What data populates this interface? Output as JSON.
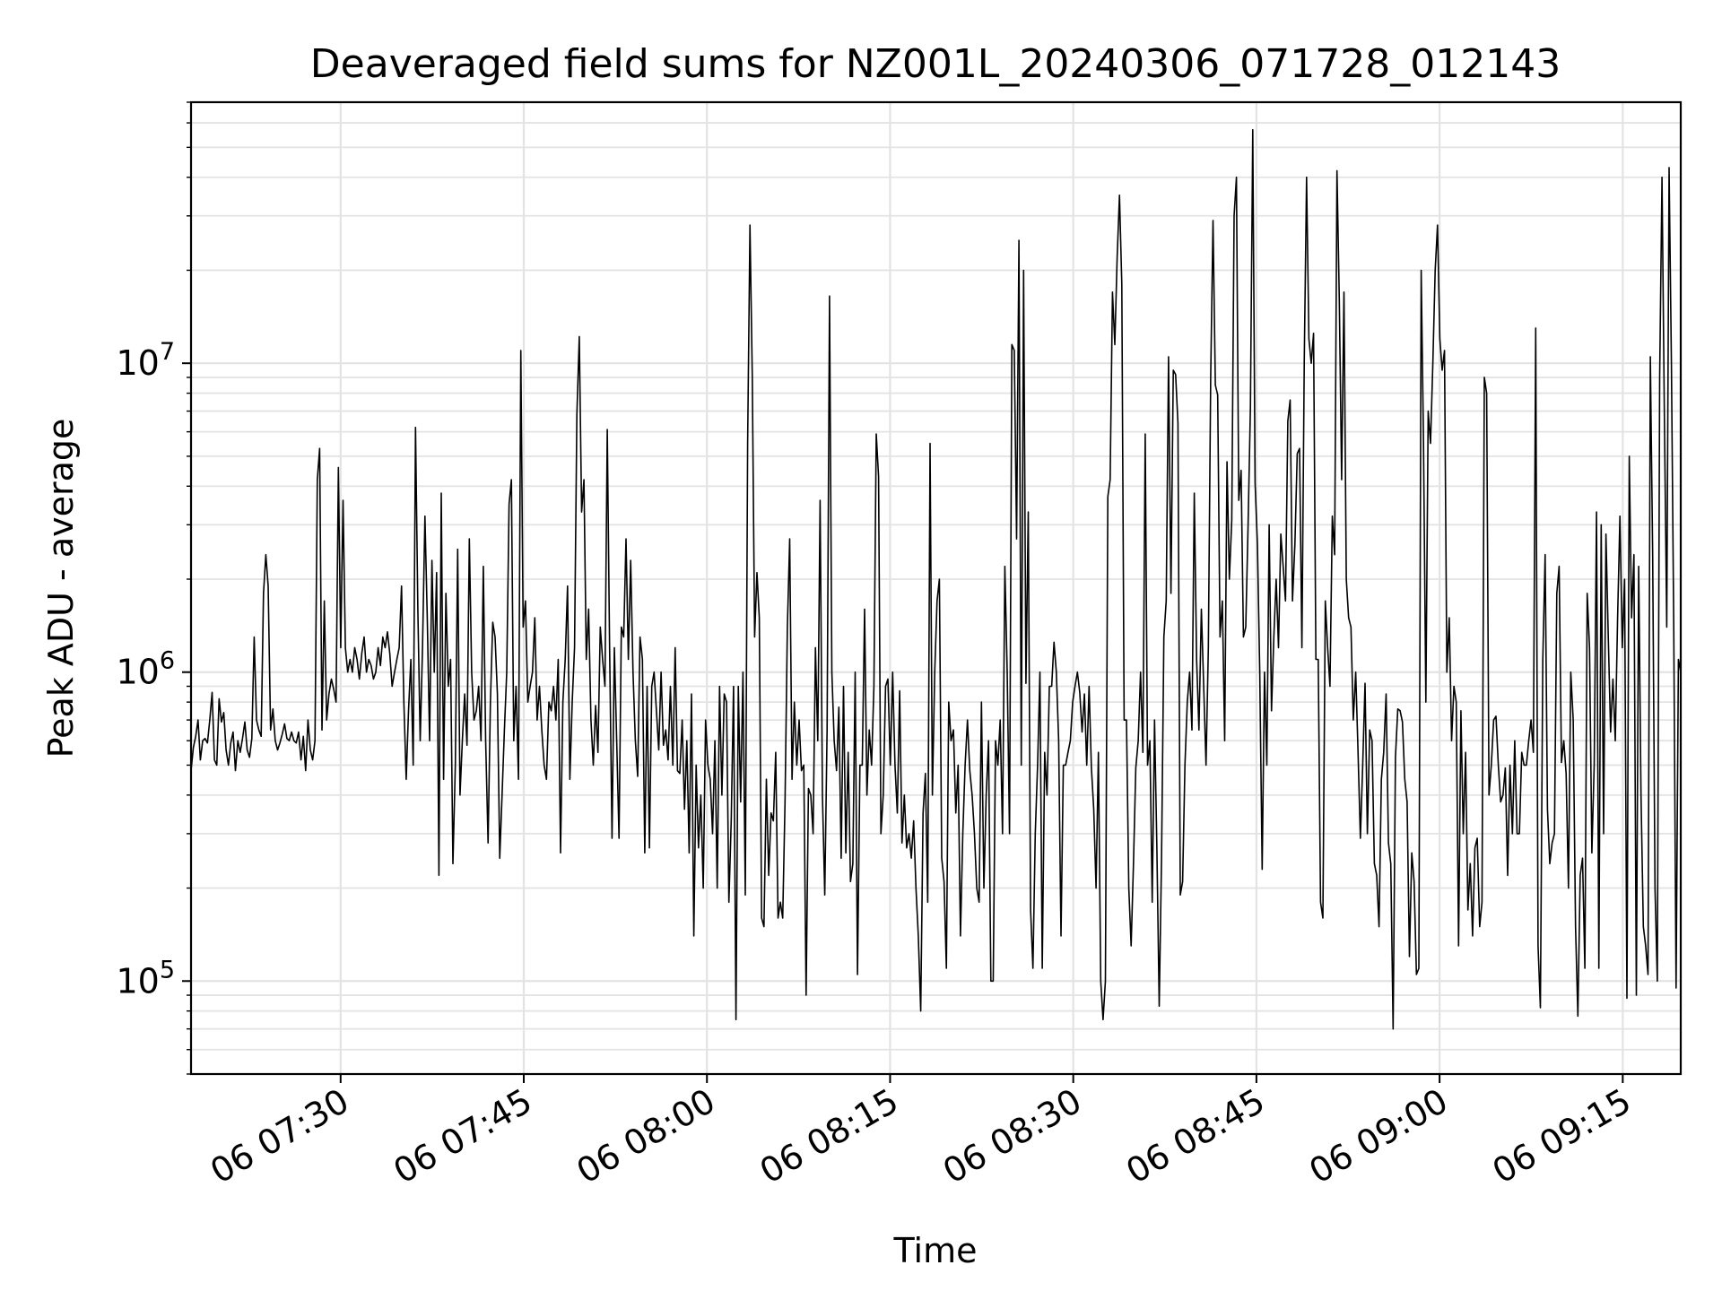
{
  "chart_data": {
    "type": "line",
    "title": "Deaveraged field sums for NZ001L_20240306_071728_012143",
    "xlabel": "Time",
    "ylabel": "Peak ADU - average",
    "y_scale": "log",
    "ylim": [
      50000,
      70000000
    ],
    "xlim": [
      "2024-03-06 07:17:45",
      "2024-03-06 09:19:45"
    ],
    "grid": true,
    "x_tick_labels": [
      "06 07:30",
      "06 07:45",
      "06 08:00",
      "06 08:15",
      "06 08:30",
      "06 08:45",
      "06 09:00",
      "06 09:15"
    ],
    "y_tick_labels": [
      {
        "base": "10",
        "exp": "5",
        "value": 100000
      },
      {
        "base": "10",
        "exp": "6",
        "value": 1000000
      },
      {
        "base": "10",
        "exp": "7",
        "value": 10000000
      }
    ],
    "line_color": "#000000",
    "series": [
      {
        "x_start": "2024-03-06 07:17:45",
        "x_end": "2024-03-06 09:19:45",
        "values": [
          480000,
          570000,
          620000,
          700000,
          520000,
          600000,
          610000,
          590000,
          700000,
          860000,
          520000,
          500000,
          820000,
          690000,
          740000,
          560000,
          500000,
          590000,
          640000,
          480000,
          600000,
          550000,
          610000,
          690000,
          560000,
          530000,
          610000,
          1300000,
          700000,
          650000,
          620000,
          1800000,
          2400000,
          1900000,
          650000,
          760000,
          600000,
          560000,
          590000,
          630000,
          680000,
          610000,
          600000,
          640000,
          600000,
          590000,
          640000,
          520000,
          620000,
          480000,
          700000,
          560000,
          520000,
          600000,
          4200000,
          5300000,
          650000,
          1700000,
          700000,
          850000,
          950000,
          880000,
          800000,
          4600000,
          1200000,
          3600000,
          1200000,
          1000000,
          1100000,
          1000000,
          1200000,
          1100000,
          950000,
          1150000,
          1300000,
          1000000,
          1100000,
          1050000,
          950000,
          1000000,
          1200000,
          1050000,
          1300000,
          1200000,
          1350000,
          1150000,
          900000,
          1000000,
          1100000,
          1200000,
          1900000,
          800000,
          450000,
          750000,
          1100000,
          500000,
          6200000,
          1600000,
          600000,
          1200000,
          3200000,
          1500000,
          600000,
          2300000,
          1000000,
          2100000,
          220000,
          3800000,
          450000,
          1800000,
          900000,
          1100000,
          240000,
          500000,
          2500000,
          400000,
          600000,
          850000,
          580000,
          2700000,
          1000000,
          700000,
          750000,
          900000,
          600000,
          2200000,
          600000,
          280000,
          800000,
          1450000,
          1300000,
          850000,
          250000,
          400000,
          650000,
          1000000,
          3500000,
          4200000,
          600000,
          900000,
          450000,
          11000000,
          1400000,
          1700000,
          800000,
          900000,
          1000000,
          1500000,
          700000,
          900000,
          650000,
          500000,
          450000,
          800000,
          750000,
          900000,
          700000,
          1100000,
          260000,
          800000,
          1100000,
          1900000,
          450000,
          800000,
          1200000,
          6800000,
          12200000,
          3300000,
          4200000,
          1100000,
          1600000,
          700000,
          500000,
          780000,
          550000,
          1400000,
          1100000,
          900000,
          6100000,
          1200000,
          290000,
          1200000,
          600000,
          290000,
          1400000,
          1300000,
          2700000,
          1100000,
          2300000,
          1000000,
          600000,
          460000,
          1300000,
          1100000,
          260000,
          900000,
          270000,
          900000,
          1000000,
          750000,
          560000,
          1000000,
          580000,
          650000,
          520000,
          900000,
          500000,
          1200000,
          480000,
          470000,
          700000,
          360000,
          600000,
          260000,
          850000,
          140000,
          500000,
          270000,
          400000,
          200000,
          700000,
          500000,
          450000,
          300000,
          600000,
          200000,
          900000,
          400000,
          850000,
          800000,
          180000,
          330000,
          900000,
          75000,
          900000,
          380000,
          1000000,
          190000,
          5500000,
          28000000,
          9000000,
          1300000,
          2100000,
          1500000,
          160000,
          150000,
          450000,
          220000,
          350000,
          330000,
          550000,
          160000,
          180000,
          160000,
          380000,
          1400000,
          2700000,
          450000,
          800000,
          500000,
          700000,
          480000,
          500000,
          90000,
          420000,
          400000,
          300000,
          1200000,
          600000,
          3600000,
          400000,
          190000,
          650000,
          16500000,
          1000000,
          600000,
          480000,
          770000,
          250000,
          900000,
          260000,
          550000,
          210000,
          240000,
          1000000,
          105000,
          500000,
          500000,
          1600000,
          400000,
          650000,
          500000,
          900000,
          5900000,
          4300000,
          300000,
          400000,
          900000,
          950000,
          500000,
          1000000,
          500000,
          350000,
          870000,
          280000,
          400000,
          270000,
          300000,
          250000,
          330000,
          200000,
          140000,
          80000,
          350000,
          470000,
          180000,
          5500000,
          400000,
          1000000,
          1700000,
          2000000,
          250000,
          210000,
          110000,
          800000,
          600000,
          650000,
          350000,
          500000,
          140000,
          300000,
          500000,
          700000,
          480000,
          400000,
          300000,
          200000,
          180000,
          800000,
          200000,
          400000,
          600000,
          100000,
          100000,
          600000,
          500000,
          700000,
          300000,
          2200000,
          1000000,
          300000,
          11500000,
          11000000,
          2700000,
          25000000,
          500000,
          20000000,
          920000,
          3300000,
          170000,
          110000,
          300000,
          500000,
          1000000,
          110000,
          550000,
          400000,
          900000,
          900000,
          1250000,
          1000000,
          600000,
          140000,
          500000,
          500000,
          550000,
          600000,
          800000,
          900000,
          1000000,
          860000,
          640000,
          850000,
          500000,
          900000,
          490000,
          360000,
          200000,
          550000,
          100000,
          75000,
          100000,
          3700000,
          4200000,
          17000000,
          11500000,
          22000000,
          35000000,
          18000000,
          700000,
          700000,
          200000,
          130000,
          240000,
          490000,
          600000,
          1000000,
          550000,
          5900000,
          500000,
          600000,
          180000,
          700000,
          270000,
          83000,
          250000,
          1300000,
          1700000,
          10500000,
          1800000,
          9500000,
          9200000,
          6400000,
          190000,
          210000,
          500000,
          800000,
          1000000,
          650000,
          3800000,
          1100000,
          650000,
          1600000,
          900000,
          500000,
          1200000,
          9000000,
          29000000,
          8500000,
          7900000,
          1300000,
          1700000,
          600000,
          4800000,
          2000000,
          3100000,
          30000000,
          40000000,
          3600000,
          4500000,
          1300000,
          1400000,
          3000000,
          7200000,
          57000000,
          4100000,
          2600000,
          1000000,
          230000,
          1000000,
          500000,
          3000000,
          750000,
          1300000,
          2000000,
          1200000,
          2800000,
          2200000,
          1700000,
          6500000,
          7600000,
          1700000,
          2600000,
          5100000,
          5300000,
          1200000,
          10000000,
          40000000,
          12000000,
          10000000,
          12500000,
          1100000,
          1100000,
          180000,
          160000,
          1700000,
          1200000,
          900000,
          3200000,
          2400000,
          42000000,
          16000000,
          4200000,
          17000000,
          2000000,
          1500000,
          1400000,
          700000,
          1000000,
          550000,
          290000,
          500000,
          920000,
          300000,
          650000,
          600000,
          240000,
          220000,
          150000,
          450000,
          550000,
          850000,
          280000,
          240000,
          70000,
          530000,
          760000,
          750000,
          690000,
          450000,
          380000,
          120000,
          260000,
          210000,
          105000,
          110000,
          20000000,
          5500000,
          800000,
          7000000,
          5500000,
          10000000,
          20000000,
          28000000,
          12000000,
          9500000,
          11000000,
          1000000,
          1500000,
          600000,
          900000,
          800000,
          130000,
          750000,
          300000,
          550000,
          170000,
          240000,
          140000,
          270000,
          290000,
          150000,
          180000,
          9000000,
          8000000,
          400000,
          500000,
          700000,
          720000,
          500000,
          380000,
          400000,
          490000,
          220000,
          500000,
          300000,
          600000,
          300000,
          300000,
          550000,
          500000,
          500000,
          600000,
          700000,
          550000,
          13000000,
          130000,
          82000,
          1100000,
          2400000,
          360000,
          240000,
          280000,
          300000,
          1800000,
          2200000,
          510000,
          600000,
          470000,
          200000,
          1000000,
          700000,
          150000,
          77000,
          220000,
          250000,
          110000,
          1800000,
          1200000,
          260000,
          500000,
          3300000,
          110000,
          3000000,
          300000,
          2800000,
          1300000,
          640000,
          950000,
          600000,
          1500000,
          3200000,
          1200000,
          2000000,
          88000,
          5000000,
          1500000,
          2400000,
          90000,
          2200000,
          400000,
          150000,
          130000,
          105000,
          10500000,
          2400000,
          200000,
          100000,
          9000000,
          40000000,
          7000000,
          1400000,
          43000000,
          10000000,
          1400000,
          95000,
          1100000,
          1000000
        ]
      }
    ]
  }
}
